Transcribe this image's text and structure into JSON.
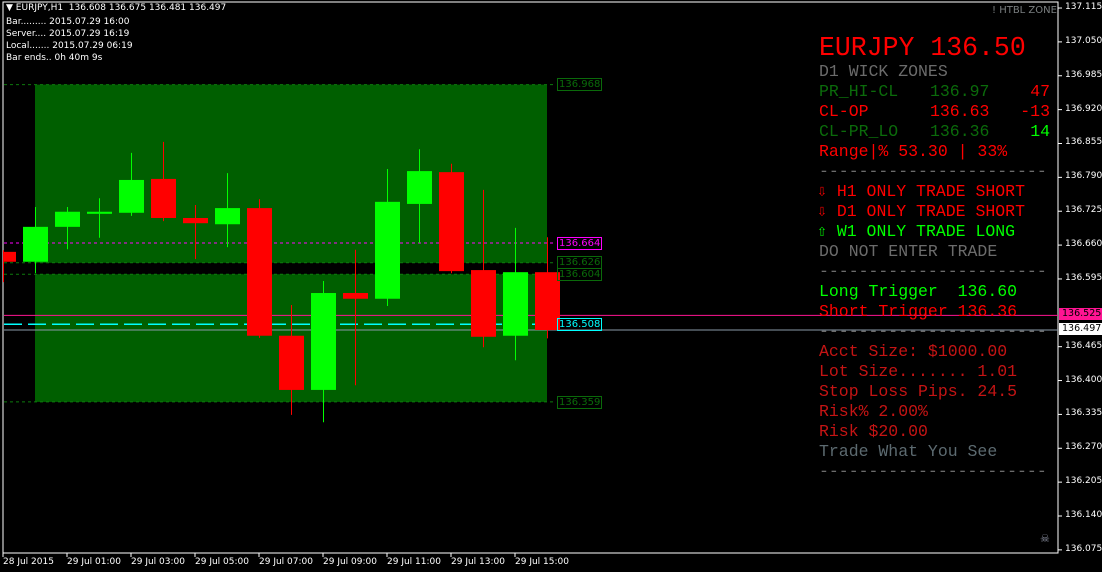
{
  "header": {
    "symbol_line": "EURJPY,H1  136.608 136.675 136.481 136.497",
    "bar": "Bar......... 2015.07.29 16:00",
    "server": "Server.... 2015.07.29 16:19",
    "local": "Local....... 2015.07.29 06:19",
    "bar_ends": "Bar ends.. 0h 40m 9s"
  },
  "watermark": "! HTBL ZONE",
  "panel": {
    "title": "EURJPY 136.50",
    "subtitle": "D1 WICK ZONES",
    "rows": [
      {
        "label": "PR_HI-CL",
        "value": "136.97",
        "pips": "47"
      },
      {
        "label": "CL-OP",
        "value": "136.63",
        "pips": "-13"
      },
      {
        "label": "CL-PR_LO",
        "value": "136.36",
        "pips": "14"
      }
    ],
    "range": "Range|% 53.30 | 33%",
    "separator": "-----------------------",
    "signals": [
      {
        "icon": "arrow-down",
        "text": "H1 ONLY TRADE SHORT",
        "arrow": "⇩"
      },
      {
        "icon": "arrow-down",
        "text": "D1 ONLY TRADE SHORT",
        "arrow": "⇩"
      },
      {
        "icon": "arrow-up",
        "text": "W1 ONLY TRADE LONG",
        "arrow": "⇧"
      }
    ],
    "advice": "DO NOT ENTER TRADE",
    "long_trigger": "Long Trigger  136.60",
    "short_trigger": "Short Trigger 136.36",
    "acct_size": "Acct Size: $1000.00",
    "lot_size": "Lot Size....... 1.01",
    "stop_loss": "Stop Loss Pips. 24.5",
    "risk_pct": "Risk% 2.00%",
    "risk": "Risk $20.00",
    "motto": "Trade What You See"
  },
  "colors": {
    "bull": "#00ff00",
    "bear": "#ff0000",
    "zone": "#005f00",
    "zone_line": "#0a6a0a",
    "magenta": "#ff00ff",
    "cyan": "#00ffff",
    "ask": "#ff1493",
    "bid": "#8a9aa8"
  },
  "levels": {
    "zone_upper_top": "136.968",
    "zone_upper_bottom": "136.626",
    "zone_lower_top": "136.604",
    "zone_lower_bottom": "136.359",
    "magenta_line": "136.664",
    "cyan_line": "136.508",
    "ask": "136.525",
    "bid": "136.497"
  },
  "price_axis": [
    "137.115",
    "137.050",
    "136.985",
    "136.920",
    "136.855",
    "136.790",
    "136.725",
    "136.660",
    "136.595",
    "136.465",
    "136.400",
    "136.335",
    "136.270",
    "136.205",
    "136.140",
    "136.075"
  ],
  "time_axis": [
    "28 Jul 2015",
    "29 Jul 01:00",
    "29 Jul 03:00",
    "29 Jul 05:00",
    "29 Jul 07:00",
    "29 Jul 09:00",
    "29 Jul 11:00",
    "29 Jul 13:00",
    "29 Jul 15:00"
  ],
  "chart_data": {
    "type": "candlestick",
    "timeframe": "H1",
    "candles": [
      {
        "o": 136.647,
        "h": 136.65,
        "l": 136.589,
        "c": 136.628
      },
      {
        "o": 136.628,
        "h": 136.733,
        "l": 136.606,
        "c": 136.695
      },
      {
        "o": 136.695,
        "h": 136.733,
        "l": 136.652,
        "c": 136.724
      },
      {
        "o": 136.72,
        "h": 136.75,
        "l": 136.674,
        "c": 136.724
      },
      {
        "o": 136.722,
        "h": 136.837,
        "l": 136.716,
        "c": 136.785
      },
      {
        "o": 136.787,
        "h": 136.858,
        "l": 136.706,
        "c": 136.712
      },
      {
        "o": 136.712,
        "h": 136.737,
        "l": 136.633,
        "c": 136.702
      },
      {
        "o": 136.7,
        "h": 136.798,
        "l": 136.656,
        "c": 136.731
      },
      {
        "o": 136.731,
        "h": 136.748,
        "l": 136.482,
        "c": 136.486
      },
      {
        "o": 136.486,
        "h": 136.545,
        "l": 136.334,
        "c": 136.382
      },
      {
        "o": 136.382,
        "h": 136.591,
        "l": 136.32,
        "c": 136.568
      },
      {
        "o": 136.568,
        "h": 136.651,
        "l": 136.391,
        "c": 136.557
      },
      {
        "o": 136.557,
        "h": 136.806,
        "l": 136.543,
        "c": 136.743
      },
      {
        "o": 136.739,
        "h": 136.844,
        "l": 136.664,
        "c": 136.802
      },
      {
        "o": 136.8,
        "h": 136.816,
        "l": 136.606,
        "c": 136.61
      },
      {
        "o": 136.612,
        "h": 136.766,
        "l": 136.464,
        "c": 136.484
      },
      {
        "o": 136.486,
        "h": 136.693,
        "l": 136.439,
        "c": 136.608
      },
      {
        "o": 136.608,
        "h": 136.675,
        "l": 136.481,
        "c": 136.497
      }
    ],
    "ylim": [
      136.075,
      137.115
    ]
  }
}
